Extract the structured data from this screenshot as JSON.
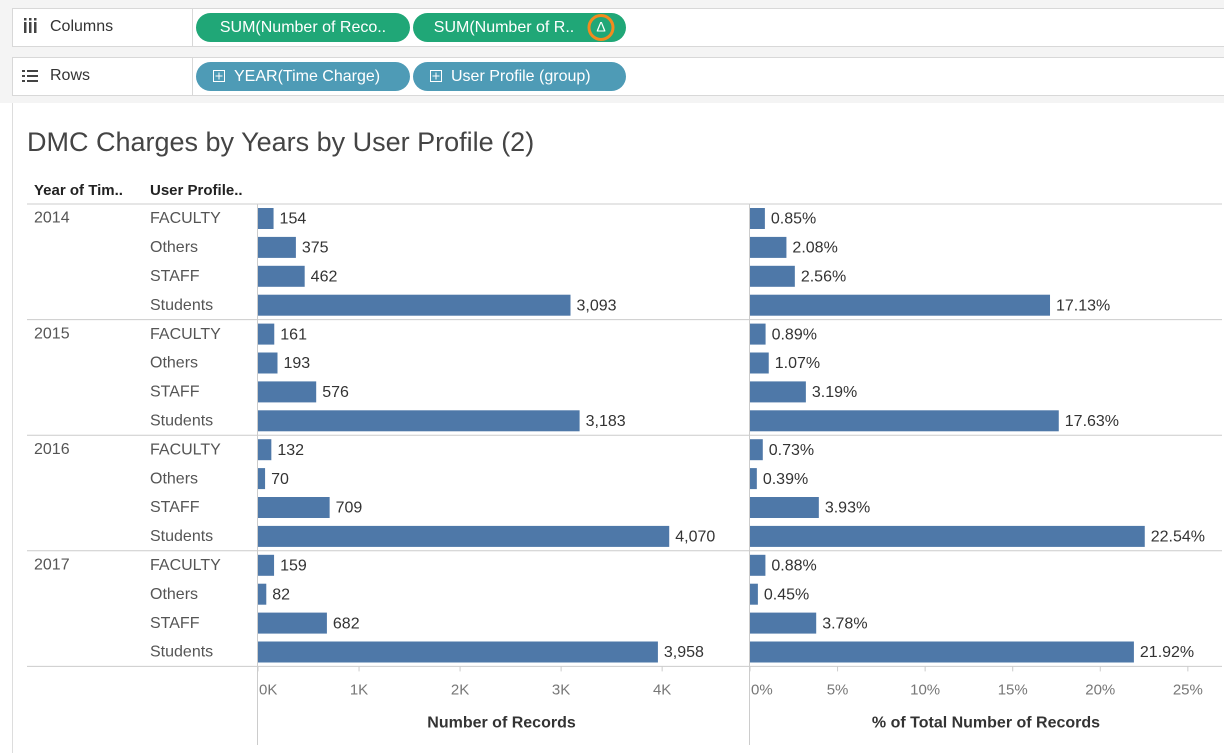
{
  "shelves": {
    "columns": {
      "label": "Columns",
      "pills": [
        "SUM(Number of Reco..",
        "SUM(Number of R.."
      ],
      "badge": "Δ"
    },
    "rows": {
      "label": "Rows",
      "pills": [
        "YEAR(Time Charge)",
        "User Profile (group)"
      ]
    }
  },
  "title": "DMC Charges by Years by User Profile (2)",
  "row_headers": {
    "labels": [
      "Year of Tim..",
      "User Profile.."
    ],
    "years": [
      "2014",
      "2015",
      "2016",
      "2017"
    ],
    "profiles": [
      "FACULTY",
      "Others",
      "STAFF",
      "Students",
      "FACULTY",
      "Others",
      "STAFF",
      "Students",
      "FACULTY",
      "Others",
      "STAFF",
      "Students",
      "FACULTY",
      "Others",
      "STAFF",
      "Students"
    ]
  },
  "chart_data": [
    {
      "type": "bar",
      "orientation": "horizontal",
      "color": "#4e78a8",
      "xlabel": "Number of Records",
      "values": [
        154,
        375,
        462,
        3093,
        161,
        193,
        576,
        3183,
        132,
        70,
        709,
        4070,
        159,
        82,
        682,
        3958
      ],
      "value_labels": [
        "154",
        "375",
        "462",
        "3,093",
        "161",
        "193",
        "576",
        "3,183",
        "132",
        "70",
        "709",
        "4,070",
        "159",
        "82",
        "682",
        "3,958"
      ],
      "xlim": [
        0,
        4820
      ],
      "xticks": [
        {
          "value": 0,
          "label": "0K"
        },
        {
          "value": 1000,
          "label": "1K"
        },
        {
          "value": 2000,
          "label": "2K"
        },
        {
          "value": 3000,
          "label": "3K"
        },
        {
          "value": 4000,
          "label": "4K"
        }
      ]
    },
    {
      "type": "bar",
      "orientation": "horizontal",
      "color": "#4e78a8",
      "xlabel": "% of Total Number of Records",
      "values": [
        0.85,
        2.08,
        2.56,
        17.13,
        0.89,
        1.07,
        3.19,
        17.63,
        0.73,
        0.39,
        3.93,
        22.54,
        0.88,
        0.45,
        3.78,
        21.92
      ],
      "value_labels": [
        "0.85%",
        "2.08%",
        "2.56%",
        "17.13%",
        "0.89%",
        "1.07%",
        "3.19%",
        "17.63%",
        "0.73%",
        "0.39%",
        "3.93%",
        "22.54%",
        "0.88%",
        "0.45%",
        "3.78%",
        "21.92%"
      ],
      "xlim": [
        0,
        26.95
      ],
      "xticks": [
        {
          "value": 0,
          "label": "0%"
        },
        {
          "value": 5,
          "label": "5%"
        },
        {
          "value": 10,
          "label": "10%"
        },
        {
          "value": 15,
          "label": "15%"
        },
        {
          "value": 20,
          "label": "20%"
        },
        {
          "value": 25,
          "label": "25%"
        }
      ]
    }
  ]
}
